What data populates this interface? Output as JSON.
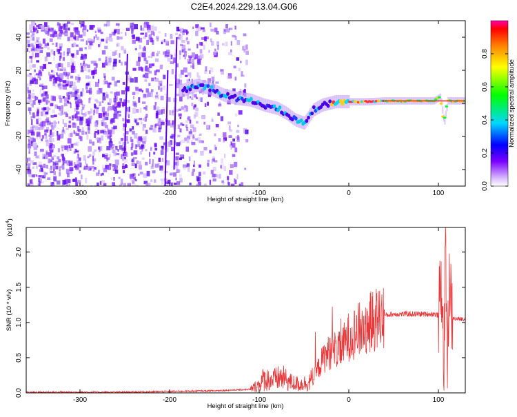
{
  "title": "C2E4.2024.229.13.04.G06",
  "chart_data": [
    {
      "type": "heatmap",
      "xlabel": "Height of straight line (km)",
      "ylabel": "Frequency (Hz)",
      "xlim": [
        -360,
        130
      ],
      "ylim": [
        -50,
        50
      ],
      "xticks": [
        -300,
        -200,
        -100,
        0,
        100
      ],
      "yticks": [
        -40,
        -20,
        0,
        20,
        40
      ],
      "ridge": {
        "x": [
          -185,
          -170,
          -155,
          -140,
          -125,
          -110,
          -95,
          -80,
          -70,
          -60,
          -50,
          -40,
          -30,
          -15,
          0,
          20,
          40,
          60,
          80,
          95,
          102,
          106,
          110,
          115,
          130
        ],
        "y": [
          8,
          11,
          9,
          5,
          3,
          2,
          -1,
          -3,
          -6,
          -10,
          -12,
          -4,
          -1,
          1,
          1,
          1,
          1.5,
          1.5,
          1.5,
          1.5,
          4,
          -12,
          1.5,
          1.5,
          1.5
        ]
      },
      "colorbar": {
        "label": "Normalized spectral amplitude",
        "range": [
          0,
          1
        ],
        "ticks": [
          0.0,
          0.2,
          0.4,
          0.6,
          0.8
        ]
      }
    },
    {
      "type": "line",
      "xlabel": "Height of straight line (km)",
      "ylabel": "SNR (10 * v/v)",
      "y_multiplier": "(x10",
      "y_multiplier_exp": "4",
      "y_multiplier_close": ")",
      "xlim": [
        -360,
        130
      ],
      "ylim": [
        0,
        2.35
      ],
      "xticks": [
        -300,
        -200,
        -100,
        0,
        100
      ],
      "yticks": [
        0.0,
        0.5,
        1.0,
        1.5,
        2.0
      ],
      "series": [
        {
          "color": "#e8383a",
          "x": [
            -360,
            -300,
            -250,
            -200,
            -150,
            -110,
            -100,
            -95,
            -85,
            -75,
            -65,
            -55,
            -45,
            -40,
            -32,
            -28,
            -24,
            -20,
            -15,
            -10,
            -5,
            0,
            5,
            10,
            20,
            30,
            40,
            50,
            60,
            80,
            95,
            100,
            104,
            106,
            108,
            110,
            112,
            115,
            120,
            130
          ],
          "y": [
            0.01,
            0.01,
            0.01,
            0.02,
            0.03,
            0.05,
            0.12,
            0.2,
            0.18,
            0.22,
            0.15,
            0.12,
            0.15,
            0.2,
            0.4,
            0.5,
            0.55,
            0.6,
            0.62,
            0.6,
            0.7,
            0.8,
            0.85,
            0.88,
            0.95,
            1.05,
            1.1,
            1.12,
            1.12,
            1.12,
            1.12,
            1.1,
            1.6,
            0.1,
            2.3,
            0.2,
            1.7,
            1.06,
            1.05,
            1.05
          ]
        }
      ]
    }
  ]
}
